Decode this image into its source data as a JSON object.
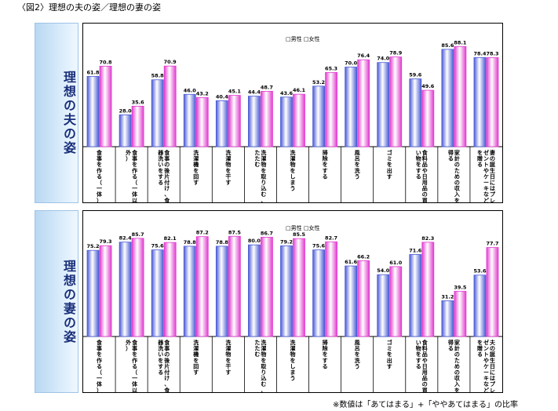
{
  "figure_title": "〈図2〉理想の夫の姿／理想の妻の姿",
  "note": "※数値は「あてはまる」+「ややあてはまる」の比率",
  "colors": {
    "male": "#4a5bd6",
    "female": "#e23bd0"
  },
  "chart_data": [
    {
      "type": "bar",
      "panel_label": "理想の夫の姿",
      "legend": [
        "□男性",
        "□女性"
      ],
      "ylim": [
        0,
        100
      ],
      "categories": [
        "食事を作る（一体）",
        "食事を作る（一体以外）",
        "食事の後片付け、食器洗いをする",
        "洗濯機を回す",
        "洗濯物を干す",
        "洗濯物を取り込む、たたむ",
        "洗濯物をしまう",
        "掃除をする",
        "風呂を洗う",
        "ゴミを出す",
        "食料品や日用品の買い物をする",
        "家計のための収入を得る",
        "妻の誕生日にはプレゼントやケーキなどを贈る"
      ],
      "series": [
        {
          "name": "男性",
          "values": [
            61.8,
            28.0,
            58.8,
            46.0,
            40.4,
            44.4,
            43.6,
            53.2,
            70.0,
            74.0,
            59.6,
            85.6,
            78.4
          ]
        },
        {
          "name": "女性",
          "values": [
            70.8,
            35.6,
            70.9,
            43.2,
            45.1,
            48.7,
            46.1,
            65.3,
            76.4,
            78.9,
            49.6,
            88.1,
            78.3
          ]
        }
      ]
    },
    {
      "type": "bar",
      "panel_label": "理想の妻の姿",
      "legend": [
        "□男性",
        "□女性"
      ],
      "ylim": [
        0,
        100
      ],
      "categories": [
        "食事を作る（一体）",
        "食事を作る（一体以外）",
        "食事の後片付け、食器洗いをする",
        "洗濯機を回す",
        "洗濯物を干す",
        "洗濯物を取り込む、たたむ",
        "洗濯物をしまう",
        "掃除をする",
        "風呂を洗う",
        "ゴミを出す",
        "食料品や日用品の買い物をする",
        "家計のための収入を得る",
        "夫の誕生日にはプレゼントやケーキなどを贈る"
      ],
      "series": [
        {
          "name": "男性",
          "values": [
            75.2,
            82.4,
            75.6,
            78.8,
            78.8,
            80.0,
            79.2,
            75.6,
            61.6,
            54.0,
            71.6,
            31.2,
            53.6
          ]
        },
        {
          "name": "女性",
          "values": [
            79.3,
            85.7,
            82.1,
            87.2,
            87.5,
            86.7,
            85.5,
            82.7,
            66.2,
            61.0,
            82.3,
            39.5,
            77.7
          ]
        }
      ]
    }
  ]
}
